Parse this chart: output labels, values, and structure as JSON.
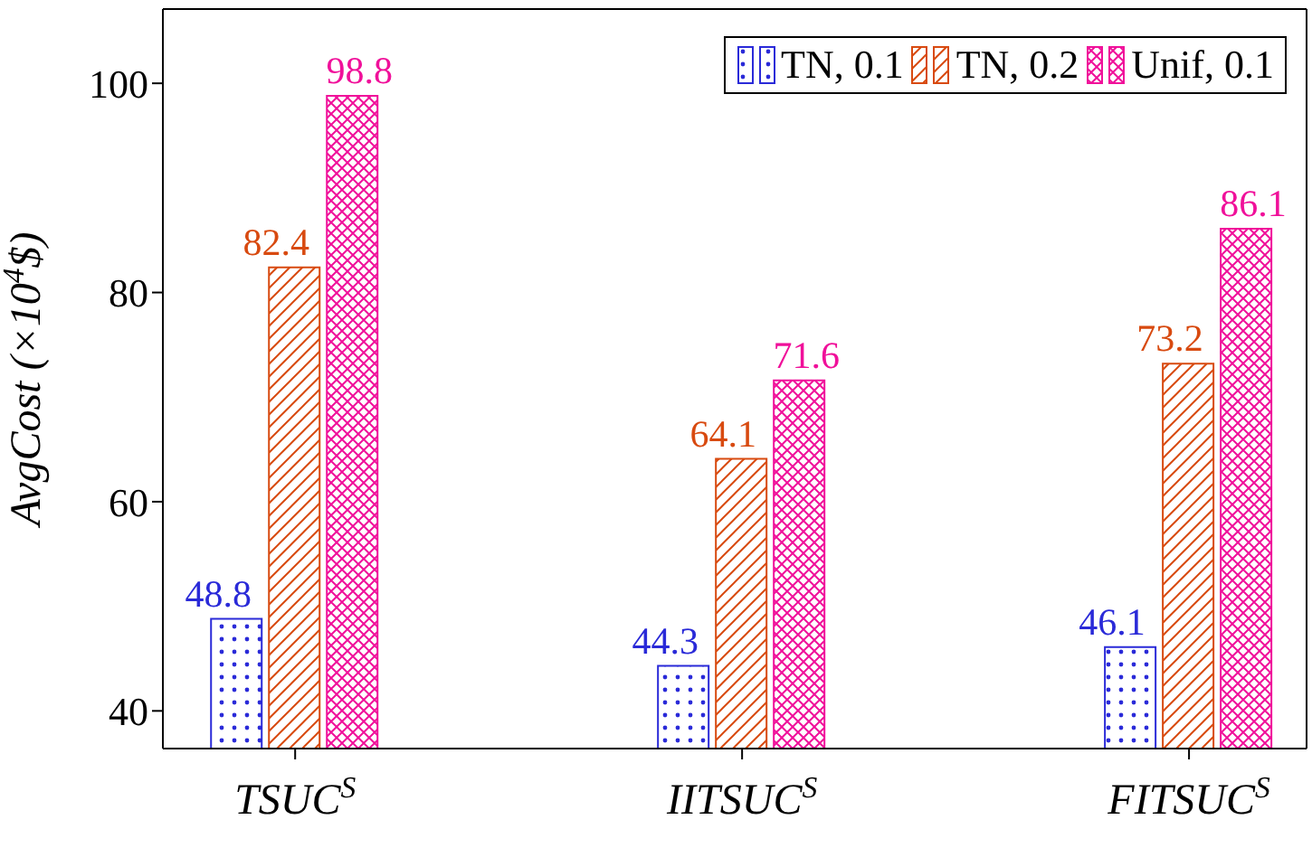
{
  "chart_data": {
    "type": "bar",
    "categories": [
      "TSUC$^{S}$",
      "IITSUC$^{S}$",
      "FITSUC$^{S}$"
    ],
    "ylabel": "AvgCost (×10$^{4}$$)",
    "ylim": [
      36.4,
      107.1
    ],
    "yticks": [
      40,
      60,
      80,
      100
    ],
    "series": [
      {
        "name": "TN, 0.1",
        "color": "#2a2ad8",
        "values": [
          48.8,
          44.3,
          46.1
        ]
      },
      {
        "name": "TN, 0.2",
        "color": "#d84a10",
        "values": [
          82.4,
          64.1,
          73.2
        ]
      },
      {
        "name": "Unif, 0.1",
        "color": "#f0109a",
        "values": [
          98.8,
          71.6,
          86.1
        ]
      }
    ],
    "data_labels": true,
    "legend": "top right",
    "grid": false
  }
}
